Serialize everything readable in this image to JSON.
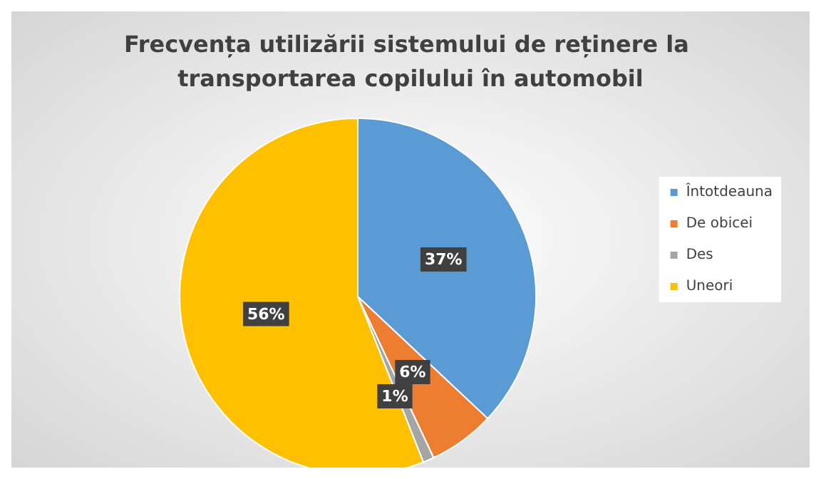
{
  "chart_data": {
    "type": "pie",
    "title": "Frecvența utilizării sistemului de reținere la transportarea copilului în automobil",
    "categories": [
      "Întotdeauna",
      "De obicei",
      "Des",
      "Uneori"
    ],
    "values": [
      37,
      6,
      1,
      56
    ],
    "value_labels": [
      "37%",
      "6%",
      "1%",
      "56%"
    ],
    "colors": [
      "#5b9bd5",
      "#ed7d31",
      "#a5a5a5",
      "#ffc000"
    ],
    "legend": "right"
  }
}
